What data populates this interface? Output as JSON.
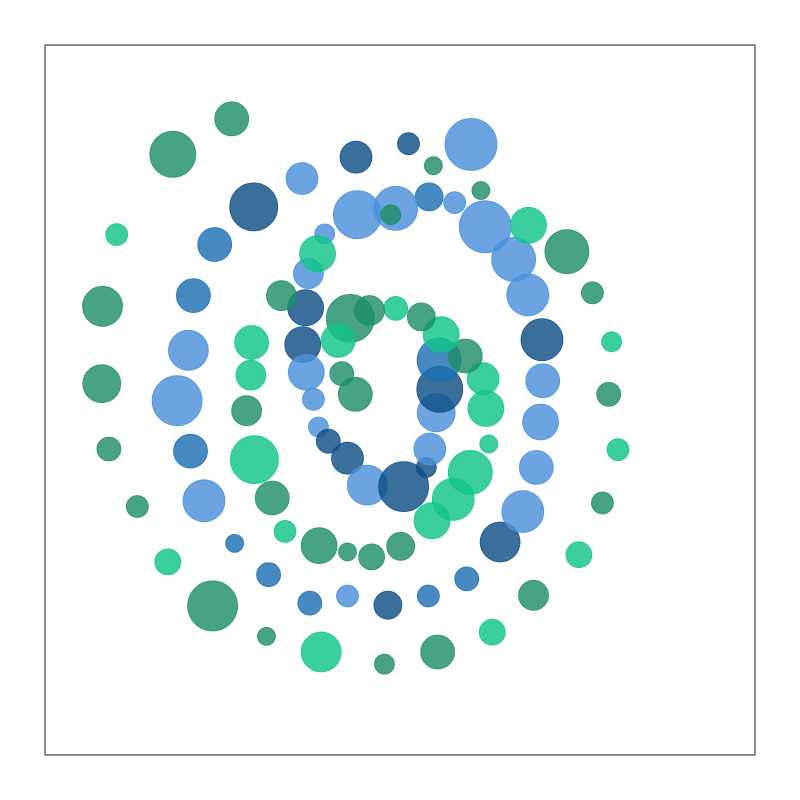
{
  "chart_data": {
    "type": "scatter",
    "title": "",
    "xlabel": "",
    "ylabel": "",
    "xlim": [
      0,
      1
    ],
    "ylim": [
      0,
      1
    ],
    "grid": false,
    "legend": "none",
    "axes_visible": false,
    "colors": {
      "blue": "#1f6fb3",
      "light_blue": "#4a90d9",
      "dark_blue": "#0f4f86",
      "green": "#1f8f68",
      "bright_green": "#10c48a",
      "frame": "#444444"
    },
    "points": [
      {
        "x": 0.6,
        "y": 0.86,
        "size": 26,
        "color": "light_blue"
      },
      {
        "x": 0.512,
        "y": 0.861,
        "size": 11,
        "color": "dark_blue"
      },
      {
        "x": 0.438,
        "y": 0.842,
        "size": 16,
        "color": "dark_blue"
      },
      {
        "x": 0.362,
        "y": 0.812,
        "size": 16,
        "color": "light_blue"
      },
      {
        "x": 0.294,
        "y": 0.772,
        "size": 24,
        "color": "dark_blue"
      },
      {
        "x": 0.239,
        "y": 0.719,
        "size": 17,
        "color": "blue"
      },
      {
        "x": 0.209,
        "y": 0.647,
        "size": 17,
        "color": "blue"
      },
      {
        "x": 0.202,
        "y": 0.57,
        "size": 20,
        "color": "light_blue"
      },
      {
        "x": 0.186,
        "y": 0.499,
        "size": 25,
        "color": "light_blue"
      },
      {
        "x": 0.205,
        "y": 0.428,
        "size": 17,
        "color": "blue"
      },
      {
        "x": 0.224,
        "y": 0.358,
        "size": 21,
        "color": "light_blue"
      },
      {
        "x": 0.267,
        "y": 0.298,
        "size": 9,
        "color": "blue"
      },
      {
        "x": 0.315,
        "y": 0.254,
        "size": 12,
        "color": "blue"
      },
      {
        "x": 0.373,
        "y": 0.214,
        "size": 12,
        "color": "blue"
      },
      {
        "x": 0.426,
        "y": 0.224,
        "size": 11,
        "color": "light_blue"
      },
      {
        "x": 0.483,
        "y": 0.211,
        "size": 14,
        "color": "dark_blue"
      },
      {
        "x": 0.54,
        "y": 0.224,
        "size": 11,
        "color": "blue"
      },
      {
        "x": 0.594,
        "y": 0.248,
        "size": 12,
        "color": "blue"
      },
      {
        "x": 0.641,
        "y": 0.3,
        "size": 20,
        "color": "dark_blue"
      },
      {
        "x": 0.673,
        "y": 0.343,
        "size": 21,
        "color": "light_blue"
      },
      {
        "x": 0.692,
        "y": 0.405,
        "size": 17,
        "color": "light_blue"
      },
      {
        "x": 0.698,
        "y": 0.469,
        "size": 18,
        "color": "light_blue"
      },
      {
        "x": 0.701,
        "y": 0.527,
        "size": 17,
        "color": "light_blue"
      },
      {
        "x": 0.7,
        "y": 0.585,
        "size": 21,
        "color": "dark_blue"
      },
      {
        "x": 0.68,
        "y": 0.648,
        "size": 21,
        "color": "light_blue"
      },
      {
        "x": 0.66,
        "y": 0.698,
        "size": 22,
        "color": "light_blue"
      },
      {
        "x": 0.62,
        "y": 0.744,
        "size": 26,
        "color": "light_blue"
      },
      {
        "x": 0.577,
        "y": 0.778,
        "size": 11,
        "color": "light_blue"
      },
      {
        "x": 0.541,
        "y": 0.786,
        "size": 14,
        "color": "blue"
      },
      {
        "x": 0.494,
        "y": 0.77,
        "size": 22,
        "color": "light_blue"
      },
      {
        "x": 0.44,
        "y": 0.761,
        "size": 24,
        "color": "light_blue"
      },
      {
        "x": 0.394,
        "y": 0.734,
        "size": 10,
        "color": "light_blue"
      },
      {
        "x": 0.371,
        "y": 0.678,
        "size": 15,
        "color": "light_blue"
      },
      {
        "x": 0.367,
        "y": 0.63,
        "size": 18,
        "color": "dark_blue"
      },
      {
        "x": 0.363,
        "y": 0.578,
        "size": 18,
        "color": "dark_blue"
      },
      {
        "x": 0.368,
        "y": 0.539,
        "size": 18,
        "color": "light_blue"
      },
      {
        "x": 0.378,
        "y": 0.501,
        "size": 11,
        "color": "light_blue"
      },
      {
        "x": 0.385,
        "y": 0.462,
        "size": 10,
        "color": "light_blue"
      },
      {
        "x": 0.399,
        "y": 0.442,
        "size": 12,
        "color": "dark_blue"
      },
      {
        "x": 0.426,
        "y": 0.418,
        "size": 16,
        "color": "dark_blue"
      },
      {
        "x": 0.454,
        "y": 0.38,
        "size": 20,
        "color": "light_blue"
      },
      {
        "x": 0.505,
        "y": 0.378,
        "size": 25,
        "color": "dark_blue"
      },
      {
        "x": 0.537,
        "y": 0.405,
        "size": 10,
        "color": "dark_blue"
      },
      {
        "x": 0.542,
        "y": 0.431,
        "size": 16,
        "color": "light_blue"
      },
      {
        "x": 0.551,
        "y": 0.482,
        "size": 19,
        "color": "light_blue"
      },
      {
        "x": 0.556,
        "y": 0.515,
        "size": 23,
        "color": "dark_blue"
      },
      {
        "x": 0.555,
        "y": 0.556,
        "size": 22,
        "color": "blue"
      },
      {
        "x": 0.6,
        "y": 0.85,
        "size": 0,
        "color": "light_blue"
      },
      {
        "x": 0.263,
        "y": 0.896,
        "size": 17,
        "color": "green"
      },
      {
        "x": 0.18,
        "y": 0.846,
        "size": 23,
        "color": "green"
      },
      {
        "x": 0.101,
        "y": 0.733,
        "size": 11,
        "color": "bright_green"
      },
      {
        "x": 0.081,
        "y": 0.632,
        "size": 20,
        "color": "green"
      },
      {
        "x": 0.08,
        "y": 0.523,
        "size": 19,
        "color": "green"
      },
      {
        "x": 0.09,
        "y": 0.431,
        "size": 12,
        "color": "green"
      },
      {
        "x": 0.13,
        "y": 0.35,
        "size": 11,
        "color": "green"
      },
      {
        "x": 0.173,
        "y": 0.272,
        "size": 13,
        "color": "bright_green"
      },
      {
        "x": 0.236,
        "y": 0.21,
        "size": 25,
        "color": "green"
      },
      {
        "x": 0.312,
        "y": 0.167,
        "size": 9,
        "color": "green"
      },
      {
        "x": 0.389,
        "y": 0.145,
        "size": 20,
        "color": "bright_green"
      },
      {
        "x": 0.478,
        "y": 0.128,
        "size": 10,
        "color": "green"
      },
      {
        "x": 0.553,
        "y": 0.145,
        "size": 17,
        "color": "green"
      },
      {
        "x": 0.63,
        "y": 0.173,
        "size": 13,
        "color": "bright_green"
      },
      {
        "x": 0.688,
        "y": 0.225,
        "size": 15,
        "color": "green"
      },
      {
        "x": 0.752,
        "y": 0.282,
        "size": 13,
        "color": "bright_green"
      },
      {
        "x": 0.785,
        "y": 0.355,
        "size": 11,
        "color": "green"
      },
      {
        "x": 0.807,
        "y": 0.43,
        "size": 11,
        "color": "bright_green"
      },
      {
        "x": 0.794,
        "y": 0.508,
        "size": 12,
        "color": "green"
      },
      {
        "x": 0.798,
        "y": 0.582,
        "size": 10,
        "color": "bright_green"
      },
      {
        "x": 0.771,
        "y": 0.651,
        "size": 11,
        "color": "green"
      },
      {
        "x": 0.735,
        "y": 0.709,
        "size": 22,
        "color": "green"
      },
      {
        "x": 0.681,
        "y": 0.746,
        "size": 18,
        "color": "bright_green"
      },
      {
        "x": 0.614,
        "y": 0.795,
        "size": 9,
        "color": "green"
      },
      {
        "x": 0.547,
        "y": 0.83,
        "size": 9,
        "color": "green"
      },
      {
        "x": 0.487,
        "y": 0.761,
        "size": 10,
        "color": "green"
      },
      {
        "x": 0.384,
        "y": 0.706,
        "size": 18,
        "color": "bright_green"
      },
      {
        "x": 0.333,
        "y": 0.647,
        "size": 15,
        "color": "green"
      },
      {
        "x": 0.291,
        "y": 0.581,
        "size": 17,
        "color": "bright_green"
      },
      {
        "x": 0.29,
        "y": 0.535,
        "size": 15,
        "color": "bright_green"
      },
      {
        "x": 0.284,
        "y": 0.485,
        "size": 15,
        "color": "green"
      },
      {
        "x": 0.295,
        "y": 0.416,
        "size": 24,
        "color": "bright_green"
      },
      {
        "x": 0.32,
        "y": 0.362,
        "size": 17,
        "color": "green"
      },
      {
        "x": 0.338,
        "y": 0.315,
        "size": 11,
        "color": "bright_green"
      },
      {
        "x": 0.386,
        "y": 0.295,
        "size": 18,
        "color": "green"
      },
      {
        "x": 0.426,
        "y": 0.286,
        "size": 9,
        "color": "green"
      },
      {
        "x": 0.46,
        "y": 0.279,
        "size": 13,
        "color": "green"
      },
      {
        "x": 0.501,
        "y": 0.294,
        "size": 14,
        "color": "green"
      },
      {
        "x": 0.545,
        "y": 0.33,
        "size": 18,
        "color": "bright_green"
      },
      {
        "x": 0.575,
        "y": 0.36,
        "size": 21,
        "color": "bright_green"
      },
      {
        "x": 0.599,
        "y": 0.398,
        "size": 22,
        "color": "bright_green"
      },
      {
        "x": 0.625,
        "y": 0.438,
        "size": 9,
        "color": "bright_green"
      },
      {
        "x": 0.621,
        "y": 0.488,
        "size": 18,
        "color": "bright_green"
      },
      {
        "x": 0.617,
        "y": 0.53,
        "size": 16,
        "color": "bright_green"
      },
      {
        "x": 0.592,
        "y": 0.562,
        "size": 17,
        "color": "green"
      },
      {
        "x": 0.558,
        "y": 0.592,
        "size": 18,
        "color": "bright_green"
      },
      {
        "x": 0.53,
        "y": 0.617,
        "size": 14,
        "color": "green"
      },
      {
        "x": 0.494,
        "y": 0.629,
        "size": 12,
        "color": "bright_green"
      },
      {
        "x": 0.457,
        "y": 0.626,
        "size": 15,
        "color": "green"
      },
      {
        "x": 0.43,
        "y": 0.615,
        "size": 24,
        "color": "green"
      },
      {
        "x": 0.413,
        "y": 0.584,
        "size": 17,
        "color": "bright_green"
      },
      {
        "x": 0.418,
        "y": 0.537,
        "size": 12,
        "color": "green"
      },
      {
        "x": 0.437,
        "y": 0.508,
        "size": 17,
        "color": "green"
      }
    ]
  }
}
